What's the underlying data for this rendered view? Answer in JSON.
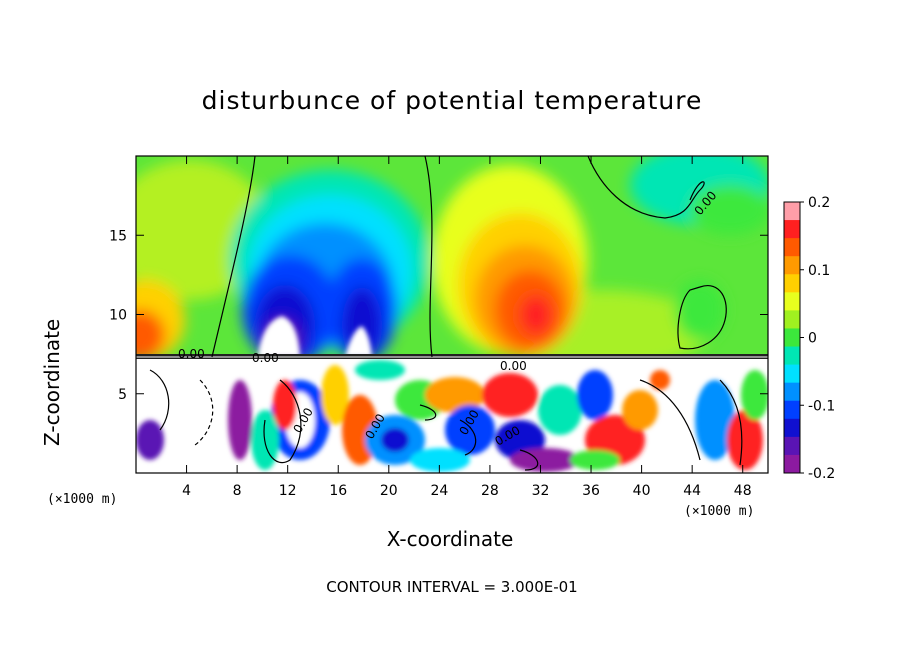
{
  "chart_data": {
    "type": "heatmap",
    "title": "disturbunce of potential temperature",
    "xlabel": "X-coordinate",
    "ylabel": "Z-coordinate",
    "x_unit_left": "(×1000 m)",
    "x_unit_right": "(×1000 m)",
    "footer": "CONTOUR INTERVAL = 3.000E-01",
    "xlim": [
      0,
      50
    ],
    "ylim": [
      0,
      20
    ],
    "x_ticks": [
      4,
      8,
      12,
      16,
      20,
      24,
      28,
      32,
      36,
      40,
      44,
      48
    ],
    "y_ticks": [
      5,
      10,
      15
    ],
    "colorbar": {
      "range": [
        -0.2,
        0.2
      ],
      "tick_labels": [
        "0.2",
        "0.1",
        "0",
        "-0.1",
        "-0.2"
      ],
      "tick_values": [
        0.2,
        0.1,
        0,
        -0.1,
        -0.2
      ],
      "colors": [
        "#ff9ea8",
        "#ff2020",
        "#ff5a00",
        "#ff9a00",
        "#ffd000",
        "#e8ff1e",
        "#a0f020",
        "#3ce83c",
        "#00e6b4",
        "#00e0ff",
        "#0090ff",
        "#0040ff",
        "#1010d0",
        "#5a14b4",
        "#8c1aa0"
      ]
    },
    "contour_labels": [
      "0.00",
      "0.00",
      "0.00",
      "0.00",
      "0.00",
      "0.00",
      "0.00",
      "0.00"
    ],
    "features": [
      {
        "name": "negative anomaly",
        "x": 11,
        "z": 11.5,
        "value": -0.19
      },
      {
        "name": "negative anomaly",
        "x": 17.5,
        "z": 11.5,
        "value": -0.15
      },
      {
        "name": "positive anomaly",
        "x": 31,
        "z": 10.2,
        "value": 0.13
      },
      {
        "name": "positive anomaly",
        "x": 0.5,
        "z": 9,
        "value": 0.12
      },
      {
        "name": "negative anomaly",
        "x": 44,
        "z": 18,
        "value": -0.07
      }
    ]
  }
}
